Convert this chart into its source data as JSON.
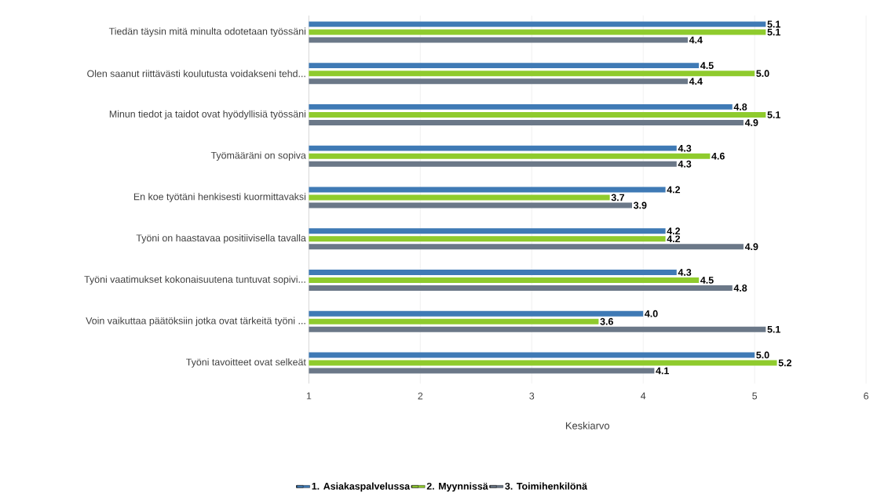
{
  "chart_data": {
    "type": "bar",
    "orientation": "horizontal",
    "xlabel": "Keskiarvo",
    "categories": [
      "Tiedän täysin mitä minulta odotetaan työssäni",
      "Olen saanut riittävästi koulutusta voidakseni tehd...",
      "Minun tiedot ja taidot ovat hyödyllisiä työssäni",
      "Työmääräni on sopiva",
      "En koe työtäni henkisesti kuormittavaksi",
      "Työni on haastavaa positiivisella tavalla",
      "Työni vaatimukset kokonaisuutena tuntuvat sopivi...",
      "Voin vaikuttaa päätöksiin jotka ovat tärkeitä työni ...",
      "Työni tavoitteet ovat selkeät"
    ],
    "series": [
      {
        "name": "1. Asiakaspalvelussa",
        "color": "#3f7ab5",
        "values": [
          5.1,
          4.5,
          4.8,
          4.3,
          4.2,
          4.2,
          4.3,
          4.0,
          5.0
        ],
        "value_labels": [
          "5.1",
          "4.5",
          "4.8",
          "4.3",
          "4.2",
          "4.2",
          "4.3",
          "4.0",
          "5.0"
        ]
      },
      {
        "name": "2. Myynnissä",
        "color": "#8fcb2d",
        "values": [
          5.1,
          5.0,
          5.1,
          4.6,
          3.7,
          4.2,
          4.5,
          3.6,
          5.2
        ],
        "value_labels": [
          "5.1",
          "5.0",
          "5.1",
          "4.6",
          "3.7",
          "4.2",
          "4.5",
          "3.6",
          "5.2"
        ]
      },
      {
        "name": "3. Toimihenkilönä",
        "color": "#6b7888",
        "values": [
          4.4,
          4.4,
          4.9,
          4.3,
          3.9,
          4.9,
          4.8,
          5.1,
          4.1
        ],
        "value_labels": [
          "4.4",
          "4.4",
          "4.9",
          "4.3",
          "3.9",
          "4.9",
          "4.8",
          "5.1",
          "4.1"
        ]
      }
    ],
    "xlim": [
      1,
      6
    ],
    "xticks": [
      1,
      2,
      3,
      4,
      5,
      6
    ],
    "grid": "x",
    "legend": "bottom"
  }
}
